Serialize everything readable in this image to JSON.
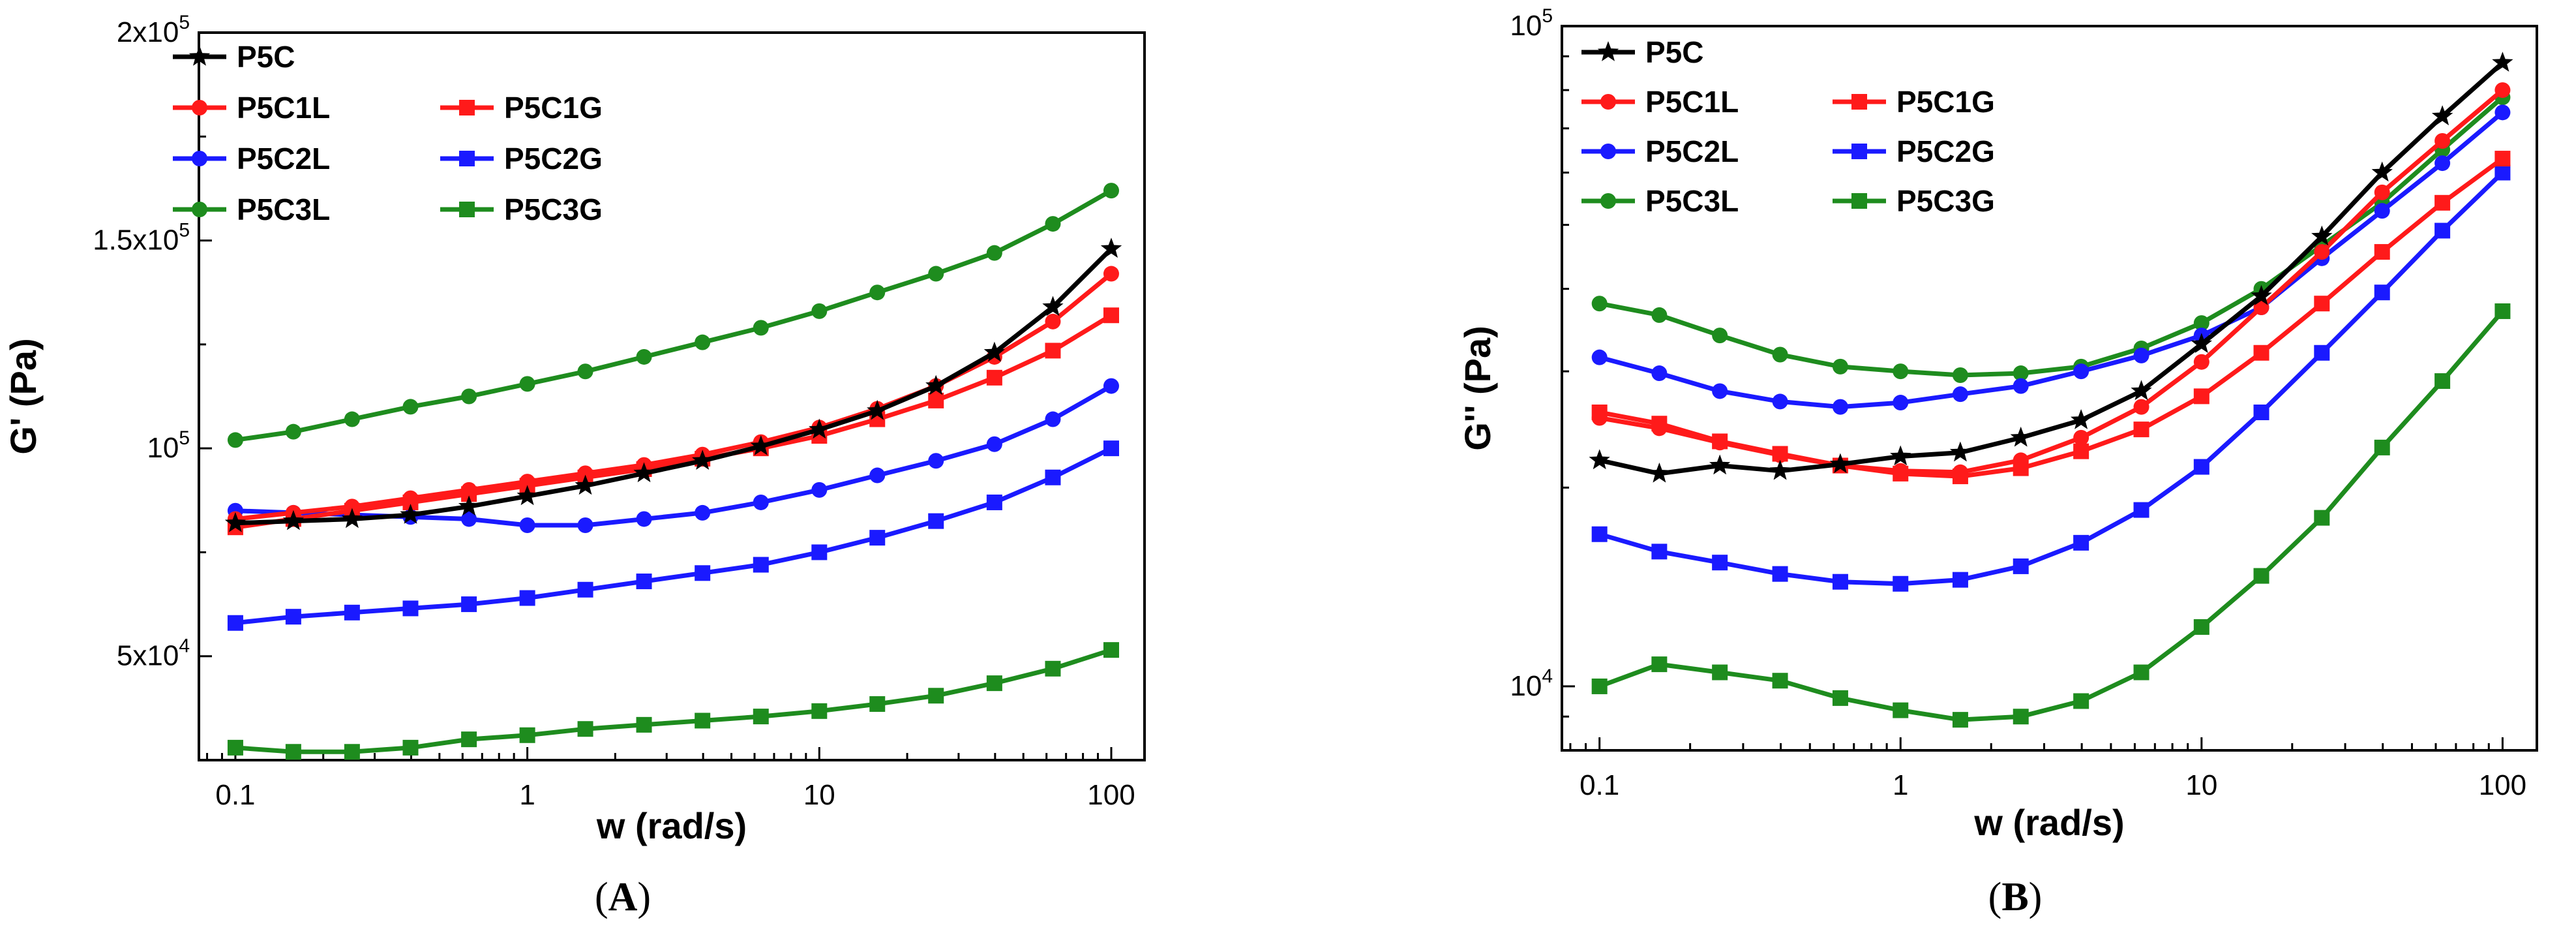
{
  "colors": {
    "black": "#000000",
    "red": "#ff1a1a",
    "blue": "#1a1aff",
    "green": "#1e8c1e"
  },
  "chart_data": [
    {
      "type": "line",
      "panel_label": "A",
      "xlabel": "w (rad/s)",
      "ylabel": "G' (Pa)",
      "xscale": "log",
      "yscale": "linear",
      "xlim": [
        0.075,
        130
      ],
      "ylim": [
        25000,
        200000
      ],
      "x_ticks": [
        {
          "value": 0.1,
          "label": "0.1"
        },
        {
          "value": 1,
          "label": "1"
        },
        {
          "value": 10,
          "label": "10"
        },
        {
          "value": 100,
          "label": "100"
        }
      ],
      "y_ticks": [
        {
          "value": 50000,
          "mantissa": "5x10",
          "exp": "4"
        },
        {
          "value": 100000,
          "mantissa": "10",
          "exp": "5"
        },
        {
          "value": 150000,
          "mantissa": "1.5x10",
          "exp": "5"
        },
        {
          "value": 200000,
          "mantissa": "2x10",
          "exp": "5"
        }
      ],
      "x": [
        0.1,
        0.158,
        0.251,
        0.398,
        0.631,
        1,
        1.58,
        2.51,
        3.98,
        6.31,
        10,
        15.8,
        25.1,
        39.8,
        63.1,
        100
      ],
      "series": [
        {
          "name": "P5C",
          "color": "black",
          "marker": "star",
          "values": [
            82000,
            82500,
            83000,
            84000,
            86000,
            88500,
            91000,
            94000,
            97000,
            100500,
            104500,
            109000,
            115000,
            123000,
            134000,
            148000
          ]
        },
        {
          "name": "P5C1L",
          "color": "red",
          "marker": "circle",
          "values": [
            83000,
            84500,
            86000,
            88000,
            90000,
            92000,
            94000,
            96000,
            98500,
            101500,
            105000,
            109500,
            115000,
            122000,
            130500,
            142000
          ]
        },
        {
          "name": "P5C1G",
          "color": "red",
          "marker": "square",
          "values": [
            81000,
            83000,
            85000,
            87000,
            89000,
            91000,
            93000,
            95000,
            97500,
            100000,
            103000,
            107000,
            111500,
            117000,
            123500,
            132000
          ]
        },
        {
          "name": "P5C2L",
          "color": "blue",
          "marker": "circle",
          "values": [
            85000,
            84500,
            84000,
            83500,
            83000,
            81500,
            81500,
            83000,
            84500,
            87000,
            90000,
            93500,
            97000,
            101000,
            107000,
            115000
          ]
        },
        {
          "name": "P5C2G",
          "color": "blue",
          "marker": "square",
          "values": [
            58000,
            59500,
            60500,
            61500,
            62500,
            64000,
            66000,
            68000,
            70000,
            72000,
            75000,
            78500,
            82500,
            87000,
            93000,
            100000
          ]
        },
        {
          "name": "P5C3L",
          "color": "green",
          "marker": "circle",
          "values": [
            102000,
            104000,
            107000,
            110000,
            112500,
            115500,
            118500,
            122000,
            125500,
            129000,
            133000,
            137500,
            142000,
            147000,
            154000,
            162000
          ]
        },
        {
          "name": "P5C3G",
          "color": "green",
          "marker": "square",
          "values": [
            28000,
            27000,
            27000,
            28000,
            30000,
            31000,
            32500,
            33500,
            34500,
            35500,
            36800,
            38500,
            40500,
            43500,
            47000,
            51500
          ]
        }
      ],
      "legend": {
        "placement": "top-left",
        "columns": [
          [
            "P5C",
            "P5C1L",
            "P5C2L",
            "P5C3L"
          ],
          [
            "P5C1G",
            "P5C2G",
            "P5C3G"
          ]
        ]
      }
    },
    {
      "type": "line",
      "panel_label": "B",
      "xlabel": "w (rad/s)",
      "ylabel": "G'' (Pa)",
      "xscale": "log",
      "yscale": "log",
      "xlim": [
        0.075,
        130
      ],
      "ylim": [
        8000,
        100000
      ],
      "x_ticks": [
        {
          "value": 0.1,
          "label": "0.1"
        },
        {
          "value": 1,
          "label": "1"
        },
        {
          "value": 10,
          "label": "10"
        },
        {
          "value": 100,
          "label": "100"
        }
      ],
      "y_ticks": [
        {
          "value": 10000,
          "mantissa": "10",
          "exp": "4"
        },
        {
          "value": 100000,
          "mantissa": "10",
          "exp": "5"
        }
      ],
      "x": [
        0.1,
        0.158,
        0.251,
        0.398,
        0.631,
        1,
        1.58,
        2.51,
        3.98,
        6.31,
        10,
        15.8,
        25.1,
        39.8,
        63.1,
        100
      ],
      "series": [
        {
          "name": "P5C",
          "color": "black",
          "marker": "star",
          "values": [
            22000,
            21000,
            21600,
            21200,
            21700,
            22300,
            22600,
            23800,
            25300,
            28000,
            33000,
            39000,
            48000,
            60000,
            73000,
            88000
          ]
        },
        {
          "name": "P5C1L",
          "color": "red",
          "marker": "circle",
          "values": [
            25500,
            24600,
            23400,
            22400,
            21600,
            21200,
            21100,
            22000,
            23800,
            26500,
            31000,
            37500,
            45500,
            56000,
            67000,
            80000
          ]
        },
        {
          "name": "P5C1G",
          "color": "red",
          "marker": "square",
          "values": [
            26000,
            25000,
            23500,
            22500,
            21600,
            21000,
            20800,
            21400,
            22700,
            24500,
            27500,
            32000,
            38000,
            45500,
            54000,
            63000
          ]
        },
        {
          "name": "P5C2L",
          "color": "blue",
          "marker": "circle",
          "values": [
            31500,
            29800,
            28000,
            27000,
            26500,
            26900,
            27700,
            28500,
            30000,
            31700,
            34000,
            37500,
            44500,
            52500,
            62000,
            74000
          ]
        },
        {
          "name": "P5C2G",
          "color": "blue",
          "marker": "square",
          "values": [
            17000,
            16000,
            15400,
            14800,
            14400,
            14300,
            14500,
            15200,
            16500,
            18500,
            21500,
            26000,
            32000,
            39500,
            49000,
            60000
          ]
        },
        {
          "name": "P5C3L",
          "color": "green",
          "marker": "circle",
          "values": [
            38000,
            36500,
            34000,
            31800,
            30500,
            30000,
            29600,
            29800,
            30500,
            32500,
            35500,
            40000,
            46500,
            54000,
            65000,
            78000
          ]
        },
        {
          "name": "P5C3G",
          "color": "green",
          "marker": "square",
          "values": [
            10000,
            10800,
            10500,
            10200,
            9600,
            9200,
            8900,
            9000,
            9500,
            10500,
            12300,
            14700,
            18000,
            23000,
            29000,
            37000
          ]
        }
      ],
      "legend": {
        "placement": "top-left",
        "columns": [
          [
            "P5C",
            "P5C1L",
            "P5C2L",
            "P5C3L"
          ],
          [
            "P5C1G",
            "P5C2G",
            "P5C3G"
          ]
        ]
      }
    }
  ]
}
